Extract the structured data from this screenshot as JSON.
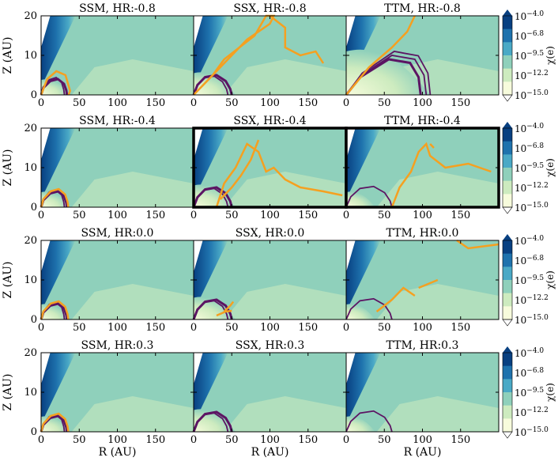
{
  "chart_data": {
    "type": "heatmap",
    "description_labels": {
      "xlabel": "R (AU)",
      "ylabel": "Z (AU)",
      "colorbar_label": "χ(e)"
    },
    "xlabel": "R (AU)",
    "ylabel": "Z (AU)",
    "xlim": [
      0,
      200
    ],
    "ylim": [
      0,
      20
    ],
    "xticks": [
      "0",
      "50",
      "100",
      "150"
    ],
    "yticks": [
      "0",
      "10",
      "20"
    ],
    "colorbar": {
      "label": "χ(e)",
      "base": "10",
      "exponents": [
        "−4.0",
        "−6.8",
        "−9.5",
        "−12.2",
        "−15.0"
      ],
      "range": [
        -15.0,
        -4.0
      ],
      "colors": [
        "#f7fcdc",
        "#cdebbf",
        "#8fd0bb",
        "#4aa9c6",
        "#1e72ad",
        "#084081"
      ]
    },
    "contour_colors": {
      "orange": "#f5a020",
      "purple": "#5c1463",
      "frame": "#000000"
    },
    "rows": [
      {
        "hr": "-0.8",
        "titles": [
          "SSM, HR:-0.8",
          "SSX, HR:-0.8",
          "TTM, HR:-0.8"
        ]
      },
      {
        "hr": "-0.4",
        "titles": [
          "SSM, HR:-0.4",
          "SSX, HR:-0.4",
          "TTM, HR:-0.4"
        ]
      },
      {
        "hr": "0.0",
        "titles": [
          "SSM, HR:0.0",
          "SSX, HR:0.0",
          "TTM, HR:0.0"
        ]
      },
      {
        "hr": "0.3",
        "titles": [
          "SSM, HR:0.3",
          "SSX, HR:0.3",
          "TTM, HR:0.3"
        ]
      }
    ],
    "models": [
      "SSM",
      "SSX",
      "TTM"
    ],
    "highlighted_panels": [
      "SSX, HR:-0.4",
      "TTM, HR:-0.4"
    ]
  }
}
